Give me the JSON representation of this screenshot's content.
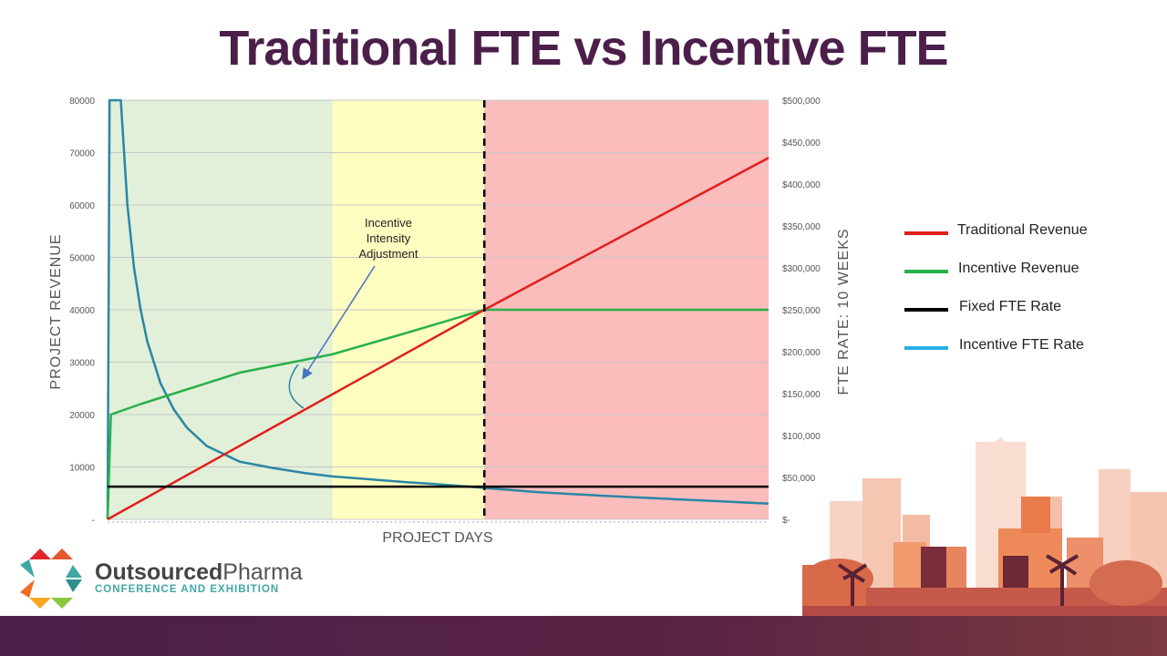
{
  "slide": {
    "title": "Traditional FTE vs Incentive FTE"
  },
  "colors": {
    "title": "#4b1f4a",
    "traditional": "#e0201c",
    "incentive": "#28b04a",
    "fixed": "#000000",
    "incentive_fte": "#2a86a5",
    "zone_green": "#e2efd9",
    "zone_yellow": "#fefec0",
    "zone_red": "#fbbcbc"
  },
  "chart_data": {
    "type": "line",
    "xlabel": "PROJECT DAYS",
    "ylabel": "PROJECT REVENUE",
    "y2label": "FTE RATE:  10 WEEKS",
    "ylim": [
      0,
      80000
    ],
    "y2lim": [
      0,
      500000
    ],
    "xlim": [
      0,
      100
    ],
    "y_ticks": [
      "-",
      "10000",
      "20000",
      "30000",
      "40000",
      "50000",
      "60000",
      "70000",
      "80000"
    ],
    "y2_ticks": [
      "$-",
      "$50,000",
      "$100,000",
      "$150,000",
      "$200,000",
      "$250,000",
      "$300,000",
      "$350,000",
      "$400,000",
      "$450,000",
      "$500,000"
    ],
    "zones": [
      {
        "color": "green",
        "x_start": 0,
        "x_end": 34
      },
      {
        "color": "yellow",
        "x_start": 34,
        "x_end": 57
      },
      {
        "color": "red",
        "x_start": 57,
        "x_end": 100
      }
    ],
    "threshold_x": 57,
    "series": [
      {
        "name": "Traditional Revenue",
        "x": [
          0,
          57,
          100
        ],
        "y": [
          0,
          40000,
          69000
        ]
      },
      {
        "name": "Incentive Revenue",
        "x": [
          0,
          0.5,
          5,
          20,
          34,
          45,
          57,
          100
        ],
        "y": [
          0,
          20000,
          22000,
          28000,
          31500,
          35500,
          40000,
          40000
        ]
      },
      {
        "name": "Fixed FTE Rate",
        "x": [
          0,
          100
        ],
        "y": [
          6250,
          6250
        ]
      },
      {
        "name": "Incentive FTE Rate",
        "x": [
          0,
          0.3,
          2,
          3,
          4,
          5,
          6,
          8,
          10,
          12,
          15,
          20,
          25,
          30,
          34,
          40,
          45,
          50,
          57,
          65,
          75,
          85,
          100
        ],
        "y": [
          0,
          80000,
          80000,
          60000,
          48000,
          40000,
          34000,
          26000,
          21000,
          17500,
          14000,
          11000,
          9800,
          8800,
          8200,
          7600,
          7100,
          6700,
          6000,
          5200,
          4500,
          3900,
          3000
        ]
      }
    ],
    "annotation": {
      "lines": [
        "Incentive",
        "Intensity",
        "Adjustment"
      ]
    },
    "legend": {
      "position": "right",
      "items": [
        "Traditional Revenue",
        "Incentive Revenue",
        "Fixed FTE Rate",
        "Incentive FTE Rate"
      ]
    }
  },
  "logo": {
    "name_bold": "Outsourced",
    "name_regular": "Pharma",
    "subtitle": "CONFERENCE AND EXHIBITION"
  }
}
